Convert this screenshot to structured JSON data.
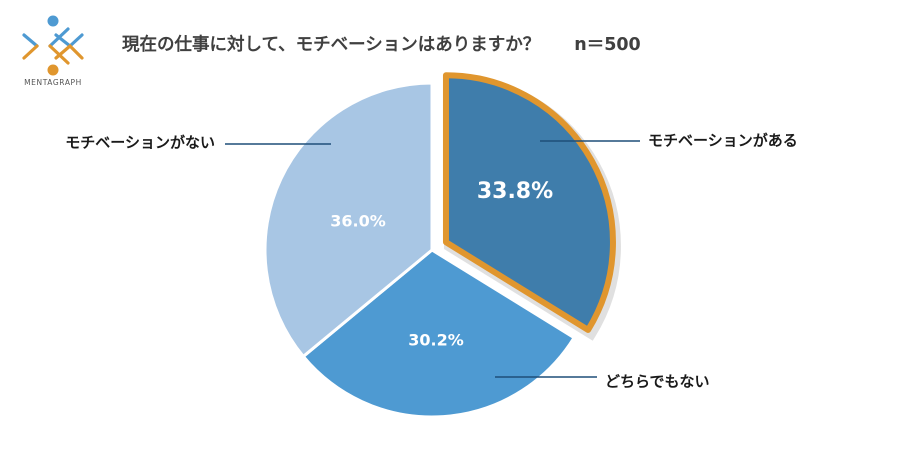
{
  "logo": {
    "text": "MENTAGRAPH"
  },
  "header": {
    "title": "現在の仕事に対して、モチベーションはありますか？",
    "sample_size": "n＝500"
  },
  "chart_data": {
    "type": "pie",
    "title": "現在の仕事に対して、モチベーションはありますか？",
    "sample_size": 500,
    "start_angle_deg": 0,
    "direction": "clockwise",
    "slices": [
      {
        "label": "モチベーションがある",
        "value": 33.8,
        "value_label": "33.8%",
        "color": "#3f7dab",
        "highlighted": true,
        "highlight_color": "#e0962e",
        "exploded": true
      },
      {
        "label": "どちらでもない",
        "value": 30.2,
        "value_label": "30.2%",
        "color": "#4e9ad2",
        "highlighted": false,
        "exploded": false
      },
      {
        "label": "モチベーションがない",
        "value": 36.0,
        "value_label": "36.0%",
        "color": "#a8c6e4",
        "highlighted": false,
        "exploded": false
      }
    ],
    "legend": "none",
    "label_style": "callout-lines"
  }
}
